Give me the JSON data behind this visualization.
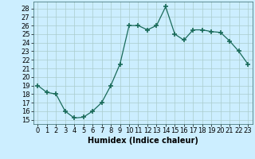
{
  "x": [
    0,
    1,
    2,
    3,
    4,
    5,
    6,
    7,
    8,
    9,
    10,
    11,
    12,
    13,
    14,
    15,
    16,
    17,
    18,
    19,
    20,
    21,
    22,
    23
  ],
  "y": [
    19,
    18.2,
    18,
    16,
    15.2,
    15.3,
    16,
    17,
    19,
    21.5,
    26,
    26,
    25.5,
    26,
    28.2,
    25,
    24.3,
    25.5,
    25.5,
    25.3,
    25.2,
    24.2,
    23,
    21.5
  ],
  "line_color": "#1a6b5a",
  "marker": "+",
  "marker_size": 5,
  "marker_lw": 1.2,
  "bg_color": "#cceeff",
  "grid_color": "#aacccc",
  "xlabel": "Humidex (Indice chaleur)",
  "ylim": [
    14.5,
    28.8
  ],
  "yticks": [
    15,
    16,
    17,
    18,
    19,
    20,
    21,
    22,
    23,
    24,
    25,
    26,
    27,
    28
  ],
  "xticks": [
    0,
    1,
    2,
    3,
    4,
    5,
    6,
    7,
    8,
    9,
    10,
    11,
    12,
    13,
    14,
    15,
    16,
    17,
    18,
    19,
    20,
    21,
    22,
    23
  ],
  "xlim": [
    -0.5,
    23.5
  ],
  "label_fontsize": 7,
  "tick_fontsize": 6
}
